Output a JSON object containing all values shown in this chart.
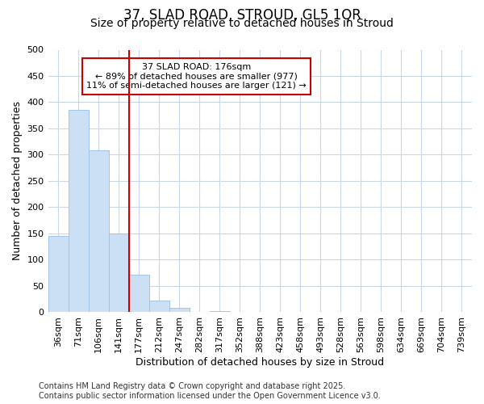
{
  "title_line1": "37, SLAD ROAD, STROUD, GL5 1QR",
  "title_line2": "Size of property relative to detached houses in Stroud",
  "xlabel": "Distribution of detached houses by size in Stroud",
  "ylabel": "Number of detached properties",
  "bar_labels": [
    "36sqm",
    "71sqm",
    "106sqm",
    "141sqm",
    "177sqm",
    "212sqm",
    "247sqm",
    "282sqm",
    "317sqm",
    "352sqm",
    "388sqm",
    "423sqm",
    "458sqm",
    "493sqm",
    "528sqm",
    "563sqm",
    "598sqm",
    "634sqm",
    "669sqm",
    "704sqm",
    "739sqm"
  ],
  "bar_values": [
    145,
    385,
    308,
    150,
    72,
    22,
    8,
    0,
    2,
    0,
    0,
    0,
    0,
    0,
    0,
    0,
    0,
    0,
    0,
    0,
    0
  ],
  "bar_color": "#cce0f5",
  "bar_edge_color": "#a0c4e8",
  "vline_x_index": 4,
  "vline_color": "#cc0000",
  "annotation_text": "37 SLAD ROAD: 176sqm\n← 89% of detached houses are smaller (977)\n11% of semi-detached houses are larger (121) →",
  "annotation_box_color": "#ffffff",
  "annotation_border_color": "#cc0000",
  "ylim": [
    0,
    500
  ],
  "yticks": [
    0,
    50,
    100,
    150,
    200,
    250,
    300,
    350,
    400,
    450,
    500
  ],
  "background_color": "#ffffff",
  "plot_bg_color": "#ffffff",
  "grid_color": "#c8d8e8",
  "footer": "Contains HM Land Registry data © Crown copyright and database right 2025.\nContains public sector information licensed under the Open Government Licence v3.0.",
  "title_fontsize": 12,
  "subtitle_fontsize": 10,
  "axis_label_fontsize": 9,
  "tick_fontsize": 8,
  "annotation_fontsize": 8,
  "footer_fontsize": 7
}
